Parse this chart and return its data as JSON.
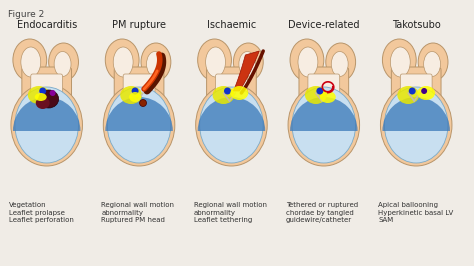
{
  "figure_label": "Figure 2",
  "background_color": "#f0ece6",
  "panel_titles": [
    "Endocarditis",
    "PM rupture",
    "Ischaemic",
    "Device-related",
    "Takotsubo"
  ],
  "panel_descriptions": [
    "Vegetation\nLeaflet prolapse\nLeaflet perforation",
    "Regional wall motion\nabnormality\nRuptured PM head",
    "Regional wall motion\nabnormality\nLeaflet tethering",
    "Tethered or ruptured\nchordae by tangled\nguidewire/catheter",
    "Apical ballooning\nHyperkinetic basal LV\nSAM"
  ],
  "heart_fill": "#f2c89c",
  "heart_stroke": "#b8956a",
  "inner_fill": "#f7ede2",
  "lv_fill_light": "#c8dff0",
  "lv_fill_dark": "#3a78b8",
  "label_fontsize": 7.0,
  "desc_fontsize": 5.0
}
